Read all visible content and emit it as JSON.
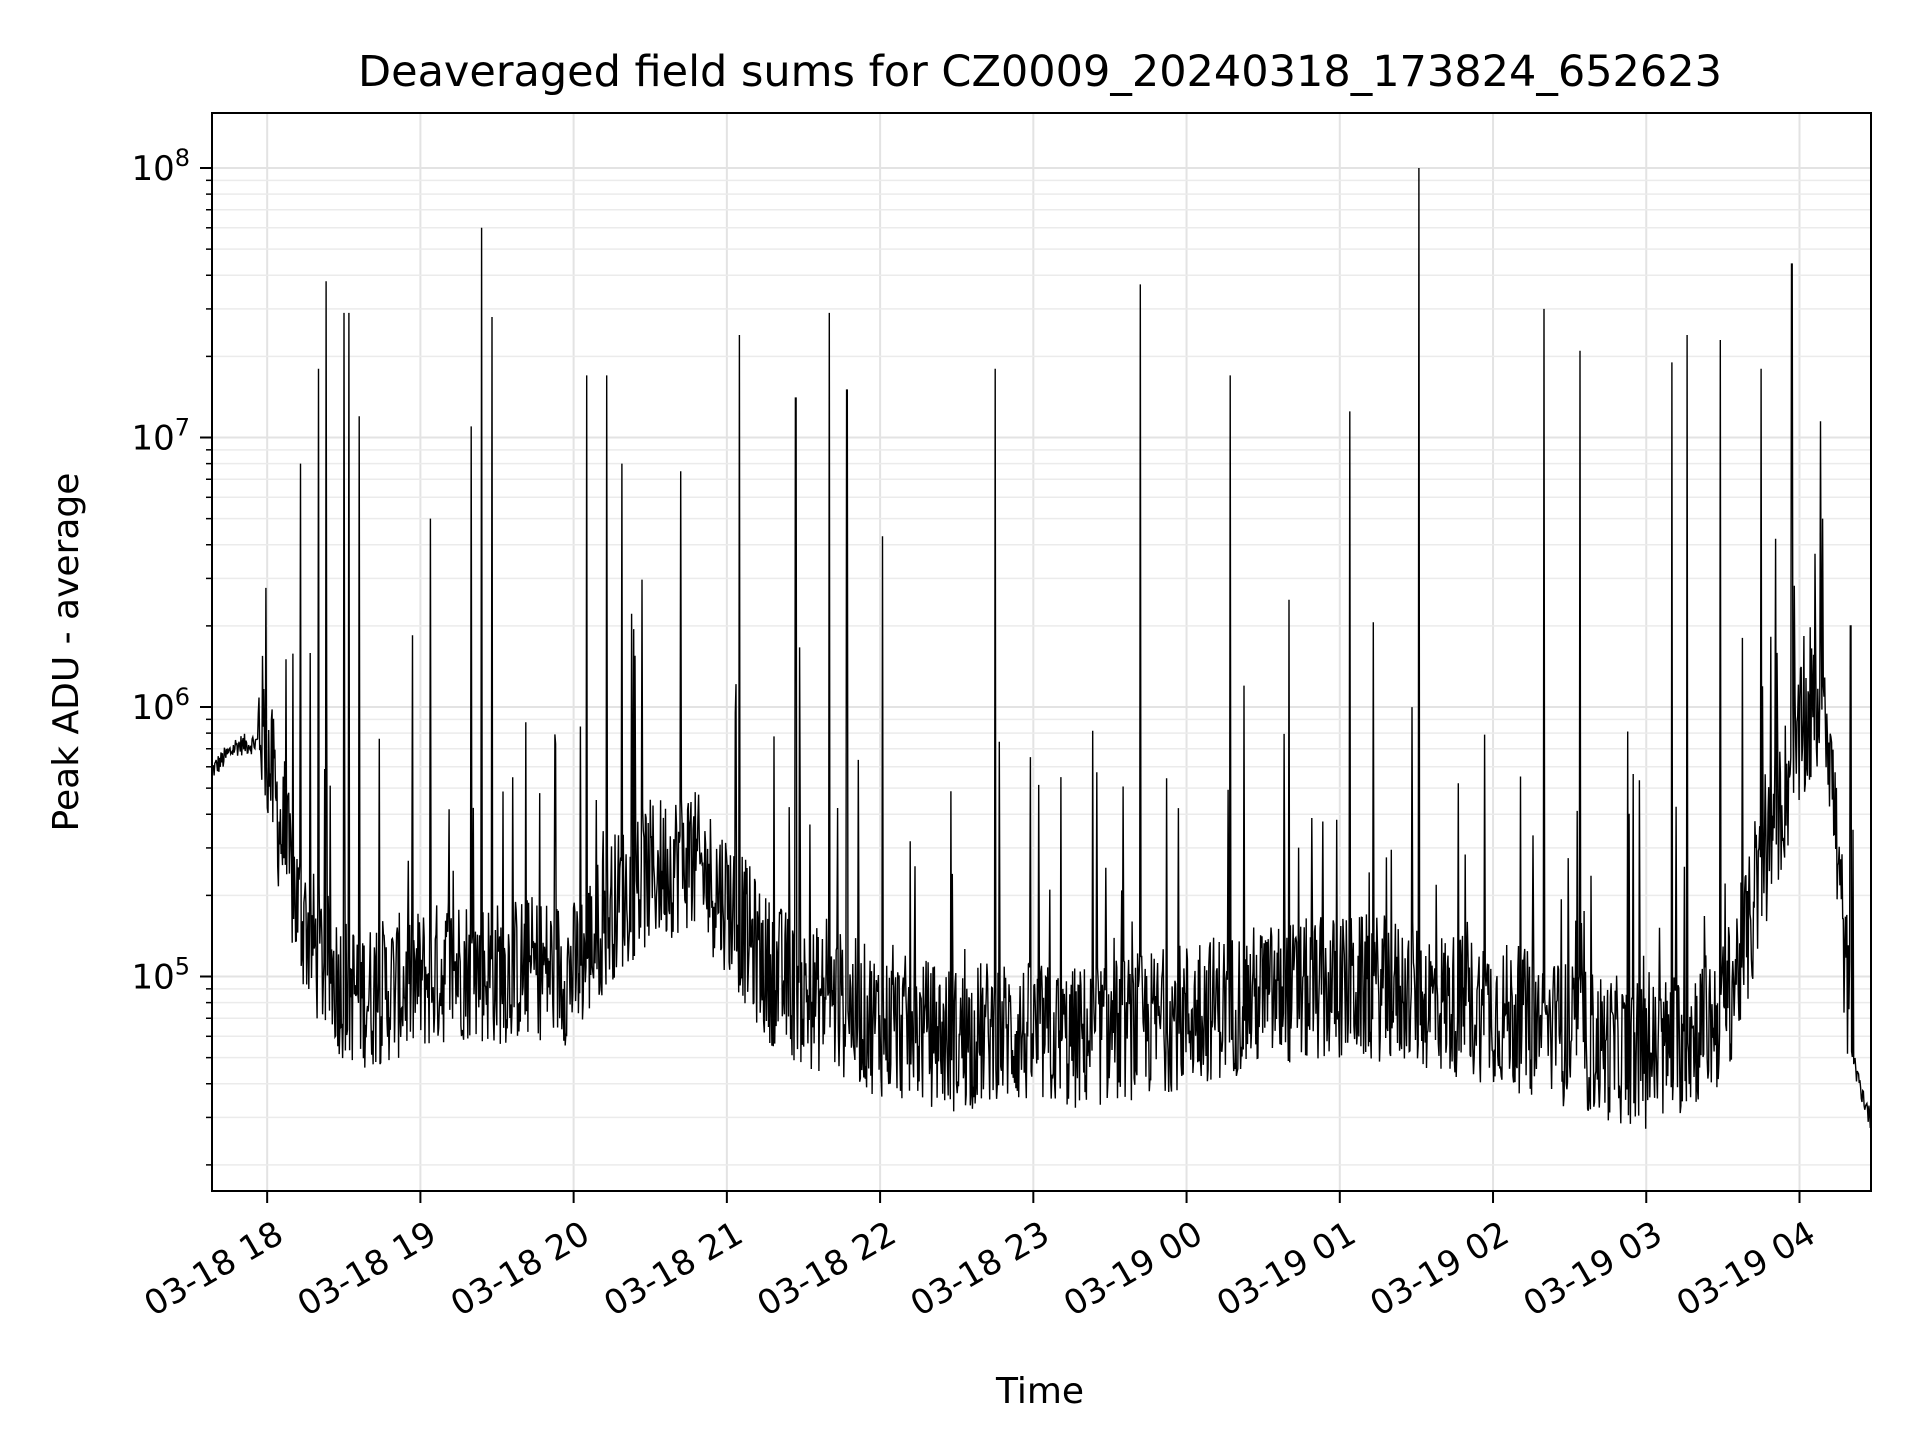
{
  "chart_data": {
    "type": "line",
    "title": "Deaveraged field sums for CZ0009_20240318_173824_652623",
    "xlabel": "Time",
    "ylabel": "Peak ADU - average",
    "yscale": "log",
    "ylim": [
      16000,
      160000000
    ],
    "xlim": [
      "03-18 17:38:24",
      "03-19 04:28:00"
    ],
    "grid": true,
    "legend": "none",
    "line_color": "#000000",
    "x_ticks": [
      {
        "value": "03-18 18:00",
        "label": "03-18 18"
      },
      {
        "value": "03-18 19:00",
        "label": "03-18 19"
      },
      {
        "value": "03-18 20:00",
        "label": "03-18 20"
      },
      {
        "value": "03-18 21:00",
        "label": "03-18 21"
      },
      {
        "value": "03-18 22:00",
        "label": "03-18 22"
      },
      {
        "value": "03-18 23:00",
        "label": "03-18 23"
      },
      {
        "value": "03-19 00:00",
        "label": "03-19 00"
      },
      {
        "value": "03-19 01:00",
        "label": "03-19 01"
      },
      {
        "value": "03-19 02:00",
        "label": "03-19 02"
      },
      {
        "value": "03-19 03:00",
        "label": "03-19 03"
      },
      {
        "value": "03-19 04:00",
        "label": "03-19 04"
      }
    ],
    "y_ticks": [
      {
        "value": 100000,
        "base": "10",
        "exp": "5"
      },
      {
        "value": 1000000,
        "base": "10",
        "exp": "6"
      },
      {
        "value": 10000000,
        "base": "10",
        "exp": "7"
      },
      {
        "value": 100000000,
        "base": "10",
        "exp": "8"
      }
    ],
    "series": [
      {
        "x": [
          "03-18 17:38",
          "03-18 17:48",
          "03-18 17:58",
          "03-18 18:05",
          "03-18 18:12",
          "03-18 18:20",
          "03-18 18:30",
          "03-18 18:40",
          "03-18 18:50",
          "03-18 19:00",
          "03-18 19:15",
          "03-18 19:30",
          "03-18 19:45",
          "03-18 20:00",
          "03-18 20:15",
          "03-18 20:30",
          "03-18 20:45",
          "03-18 21:00",
          "03-18 21:15",
          "03-18 21:30",
          "03-18 21:45",
          "03-18 22:00",
          "03-18 22:15",
          "03-18 22:30",
          "03-18 22:45",
          "03-18 23:00",
          "03-18 23:15",
          "03-18 23:30",
          "03-18 23:45",
          "03-19 00:00",
          "03-19 00:15",
          "03-19 00:30",
          "03-19 00:45",
          "03-19 01:00",
          "03-19 01:15",
          "03-19 01:30",
          "03-19 01:45",
          "03-19 02:00",
          "03-19 02:15",
          "03-19 02:30",
          "03-19 02:45",
          "03-19 03:00",
          "03-19 03:15",
          "03-19 03:30",
          "03-19 03:40",
          "03-19 03:50",
          "03-19 04:00",
          "03-19 04:10",
          "03-19 04:20",
          "03-19 04:28"
        ],
        "values": [
          560000,
          700000,
          720000,
          300000,
          150000,
          100000,
          75000,
          70000,
          75000,
          80000,
          90000,
          85000,
          90000,
          85000,
          150000,
          200000,
          230000,
          160000,
          90000,
          70000,
          65000,
          55000,
          52000,
          48000,
          52000,
          50000,
          48000,
          52000,
          55000,
          60000,
          65000,
          70000,
          72000,
          75000,
          75000,
          70000,
          65000,
          62000,
          55000,
          50000,
          45000,
          42000,
          48000,
          60000,
          120000,
          300000,
          600000,
          1000000,
          50000,
          28000
        ]
      }
    ],
    "spikes": [
      {
        "x": "03-18 18:13",
        "y": 8000000
      },
      {
        "x": "03-18 18:20",
        "y": 18000000
      },
      {
        "x": "03-18 18:23",
        "y": 38000000
      },
      {
        "x": "03-18 18:30",
        "y": 29000000
      },
      {
        "x": "03-18 18:32",
        "y": 29000000
      },
      {
        "x": "03-18 18:36",
        "y": 12000000
      },
      {
        "x": "03-18 19:04",
        "y": 5000000
      },
      {
        "x": "03-18 19:20",
        "y": 11000000
      },
      {
        "x": "03-18 19:24",
        "y": 60000000
      },
      {
        "x": "03-18 19:28",
        "y": 28000000
      },
      {
        "x": "03-18 20:05",
        "y": 17000000
      },
      {
        "x": "03-18 20:13",
        "y": 17000000
      },
      {
        "x": "03-18 20:19",
        "y": 8000000
      },
      {
        "x": "03-18 20:42",
        "y": 7500000
      },
      {
        "x": "03-18 21:05",
        "y": 24000000
      },
      {
        "x": "03-18 21:27",
        "y": 14000000
      },
      {
        "x": "03-18 21:40",
        "y": 29000000
      },
      {
        "x": "03-18 21:47",
        "y": 15000000
      },
      {
        "x": "03-18 22:01",
        "y": 4300000
      },
      {
        "x": "03-18 22:45",
        "y": 18000000
      },
      {
        "x": "03-18 23:42",
        "y": 37000000
      },
      {
        "x": "03-19 00:17",
        "y": 17000000
      },
      {
        "x": "03-19 00:40",
        "y": 2500000
      },
      {
        "x": "03-19 01:04",
        "y": 12500000
      },
      {
        "x": "03-19 01:31",
        "y": 100000000
      },
      {
        "x": "03-19 02:20",
        "y": 30000000
      },
      {
        "x": "03-19 02:34",
        "y": 21000000
      },
      {
        "x": "03-19 03:10",
        "y": 19000000
      },
      {
        "x": "03-19 03:16",
        "y": 24000000
      },
      {
        "x": "03-19 03:29",
        "y": 23000000
      },
      {
        "x": "03-19 03:45",
        "y": 18000000
      },
      {
        "x": "03-19 03:57",
        "y": 44000000
      },
      {
        "x": "03-19 04:09",
        "y": 5000000
      },
      {
        "x": "03-19 04:20",
        "y": 2000000
      }
    ]
  }
}
